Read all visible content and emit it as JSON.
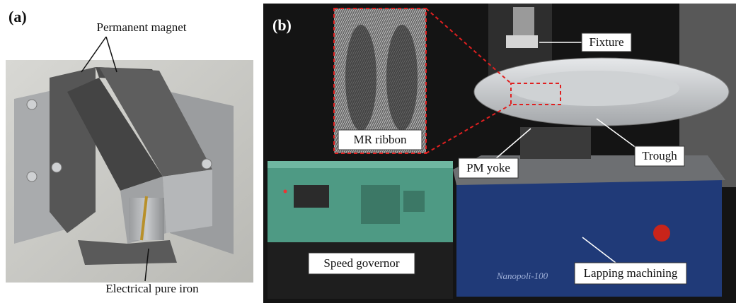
{
  "panels": [
    {
      "label": "(a)",
      "annotations": [
        "Permanent magnet",
        "Electrical pure iron"
      ]
    },
    {
      "label": "(b)",
      "inset_label": "MR ribbon",
      "annotations": [
        "Fixture",
        "Trough",
        "PM yoke",
        "Speed governor",
        "Lapping machining"
      ],
      "machine_brand": "Nanopoli-100"
    }
  ]
}
